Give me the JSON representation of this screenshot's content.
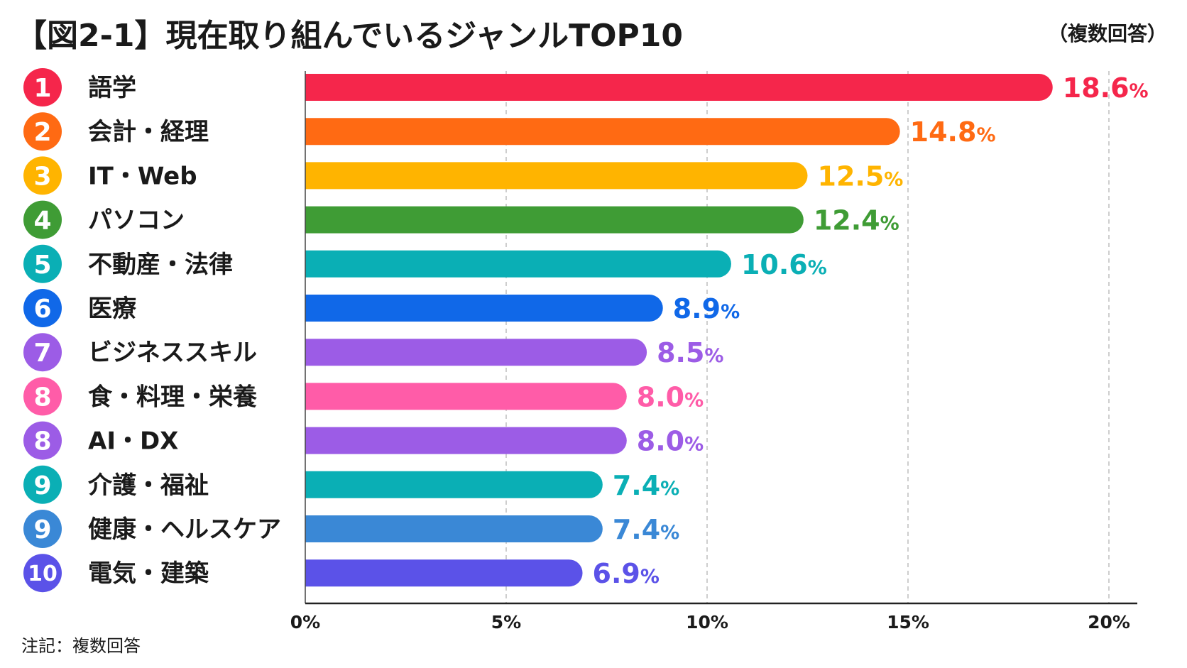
{
  "header": {
    "title": "【図2-1】現在取り組んでいるジャンルTOP10",
    "note": "（複数回答）"
  },
  "footer": {
    "note": "注記：複数回答"
  },
  "chart_data": {
    "type": "bar",
    "orientation": "horizontal",
    "unit": "%",
    "xlim": [
      0,
      20
    ],
    "x_ticks": [
      "0%",
      "5%",
      "10%",
      "15%",
      "20%"
    ],
    "grid": "vertical-dashed",
    "items": [
      {
        "rank": "1",
        "category": "語学",
        "value": 18.6,
        "value_label": "18.6",
        "color": "#F5264B"
      },
      {
        "rank": "2",
        "category": "会計・経理",
        "value": 14.8,
        "value_label": "14.8",
        "color": "#FF6A13"
      },
      {
        "rank": "3",
        "category": "IT・Web",
        "value": 12.5,
        "value_label": "12.5",
        "color": "#FFB400"
      },
      {
        "rank": "4",
        "category": "パソコン",
        "value": 12.4,
        "value_label": "12.4",
        "color": "#3F9C35"
      },
      {
        "rank": "5",
        "category": "不動産・法律",
        "value": 10.6,
        "value_label": "10.6",
        "color": "#0AAFB5"
      },
      {
        "rank": "6",
        "category": "医療",
        "value": 8.9,
        "value_label": "8.9",
        "color": "#1068E8"
      },
      {
        "rank": "7",
        "category": "ビジネススキル",
        "value": 8.5,
        "value_label": "8.5",
        "color": "#9C5CE6"
      },
      {
        "rank": "8",
        "category": "食・料理・栄養",
        "value": 8.0,
        "value_label": "8.0",
        "color": "#FF5CA8"
      },
      {
        "rank": "8",
        "category": "AI・DX",
        "value": 8.0,
        "value_label": "8.0",
        "color": "#9C5CE6"
      },
      {
        "rank": "9",
        "category": "介護・福祉",
        "value": 7.4,
        "value_label": "7.4",
        "color": "#0AAFB5"
      },
      {
        "rank": "9",
        "category": "健康・ヘルスケア",
        "value": 7.4,
        "value_label": "7.4",
        "color": "#3A88D6"
      },
      {
        "rank": "10",
        "category": "電気・建築",
        "value": 6.9,
        "value_label": "6.9",
        "color": "#5B52E8"
      }
    ]
  }
}
